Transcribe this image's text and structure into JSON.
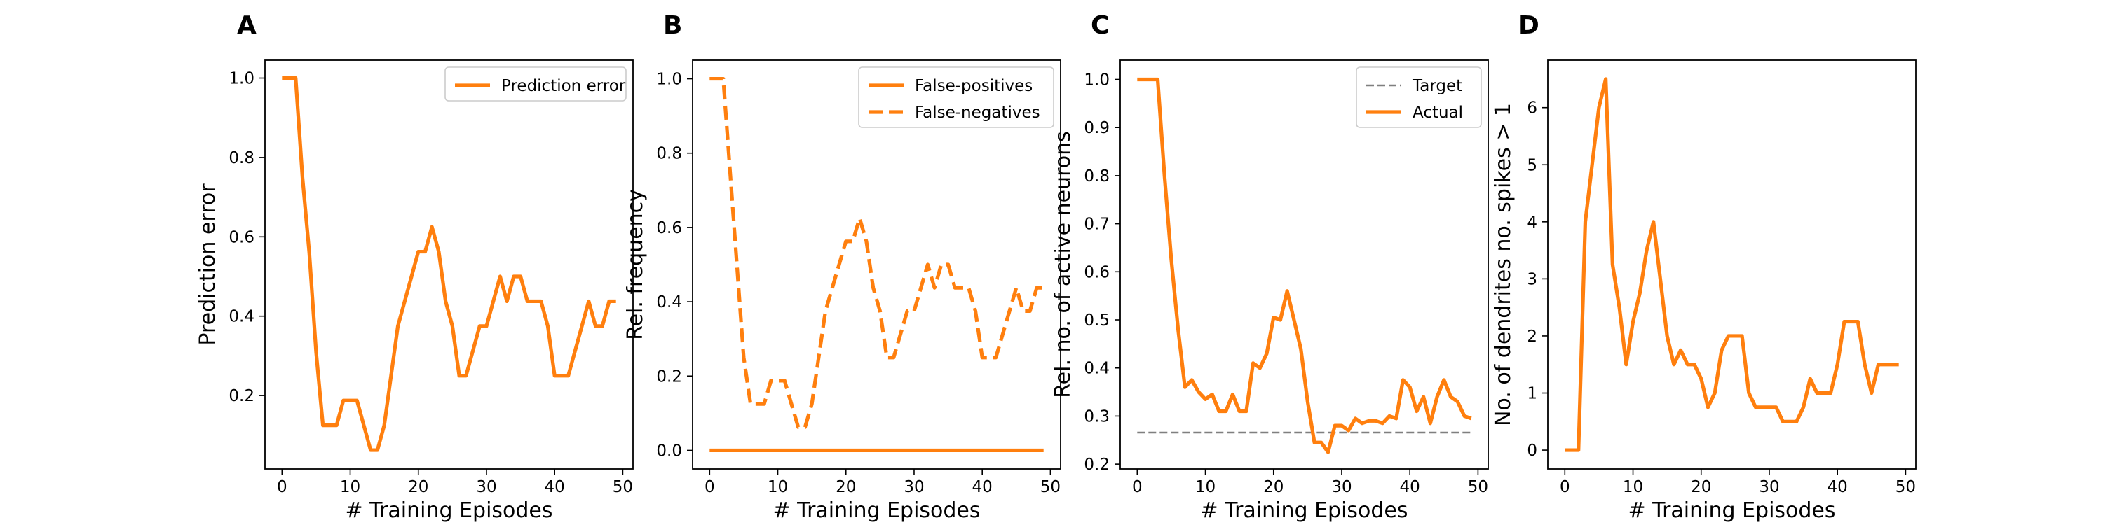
{
  "colors": {
    "series": "#ff7f0e",
    "target": "#7f7f7f",
    "axis": "#000000"
  },
  "chart_data": [
    {
      "type": "line",
      "panel_letter": "A",
      "xlabel": "# Training Episodes",
      "ylabel": "Prediction error",
      "xlim": [
        -2.5,
        51.5
      ],
      "ylim": [
        0.015,
        1.045
      ],
      "xticks": [
        0,
        10,
        20,
        30,
        40,
        50
      ],
      "xtick_labels": [
        "0",
        "10",
        "20",
        "30",
        "40",
        "50"
      ],
      "yticks": [
        0.2,
        0.4,
        0.6,
        0.8,
        1.0
      ],
      "ytick_labels": [
        "0.2",
        "0.4",
        "0.6",
        "0.8",
        "1.0"
      ],
      "legend": "upper right",
      "series": [
        {
          "name": "Prediction error",
          "style": "solid",
          "x": [
            0,
            1,
            2,
            3,
            4,
            5,
            6,
            7,
            8,
            9,
            10,
            11,
            12,
            13,
            14,
            15,
            16,
            17,
            18,
            19,
            20,
            21,
            22,
            23,
            24,
            25,
            26,
            27,
            28,
            29,
            30,
            31,
            32,
            33,
            34,
            35,
            36,
            37,
            38,
            39,
            40,
            41,
            42,
            43,
            44,
            45,
            46,
            47,
            48,
            49
          ],
          "y": [
            1.0,
            1.0,
            1.0,
            0.75,
            0.56,
            0.31,
            0.125,
            0.125,
            0.125,
            0.1875,
            0.1875,
            0.1875,
            0.125,
            0.0625,
            0.0625,
            0.125,
            0.25,
            0.375,
            0.4375,
            0.5,
            0.5625,
            0.5625,
            0.625,
            0.5625,
            0.4375,
            0.375,
            0.25,
            0.25,
            0.3125,
            0.375,
            0.375,
            0.4375,
            0.5,
            0.4375,
            0.5,
            0.5,
            0.4375,
            0.4375,
            0.4375,
            0.375,
            0.25,
            0.25,
            0.25,
            0.3125,
            0.375,
            0.4375,
            0.375,
            0.375,
            0.4375,
            0.4375
          ]
        }
      ]
    },
    {
      "type": "line",
      "panel_letter": "B",
      "xlabel": "# Training Episodes",
      "ylabel": "Rel. frequency",
      "xlim": [
        -2.5,
        51.5
      ],
      "ylim": [
        -0.05,
        1.05
      ],
      "xticks": [
        0,
        10,
        20,
        30,
        40,
        50
      ],
      "xtick_labels": [
        "0",
        "10",
        "20",
        "30",
        "40",
        "50"
      ],
      "yticks": [
        0.0,
        0.2,
        0.4,
        0.6,
        0.8,
        1.0
      ],
      "ytick_labels": [
        "0.0",
        "0.2",
        "0.4",
        "0.6",
        "0.8",
        "1.0"
      ],
      "legend": "upper right",
      "series": [
        {
          "name": "False-positives",
          "style": "solid",
          "x": [
            0,
            1,
            2,
            3,
            4,
            5,
            6,
            7,
            8,
            9,
            10,
            11,
            12,
            13,
            14,
            15,
            16,
            17,
            18,
            19,
            20,
            21,
            22,
            23,
            24,
            25,
            26,
            27,
            28,
            29,
            30,
            31,
            32,
            33,
            34,
            35,
            36,
            37,
            38,
            39,
            40,
            41,
            42,
            43,
            44,
            45,
            46,
            47,
            48,
            49
          ],
          "y": [
            0,
            0,
            0,
            0,
            0,
            0,
            0,
            0,
            0,
            0,
            0,
            0,
            0,
            0,
            0,
            0,
            0,
            0,
            0,
            0,
            0,
            0,
            0,
            0,
            0,
            0,
            0,
            0,
            0,
            0,
            0,
            0,
            0,
            0,
            0,
            0,
            0,
            0,
            0,
            0,
            0,
            0,
            0,
            0,
            0,
            0,
            0,
            0,
            0,
            0
          ]
        },
        {
          "name": "False-negatives",
          "style": "dashed",
          "x": [
            0,
            1,
            2,
            3,
            4,
            5,
            6,
            7,
            8,
            9,
            10,
            11,
            12,
            13,
            14,
            15,
            16,
            17,
            18,
            19,
            20,
            21,
            22,
            23,
            24,
            25,
            26,
            27,
            28,
            29,
            30,
            31,
            32,
            33,
            34,
            35,
            36,
            37,
            38,
            39,
            40,
            41,
            42,
            43,
            44,
            45,
            46,
            47,
            48,
            49
          ],
          "y": [
            1.0,
            1.0,
            1.0,
            0.75,
            0.5,
            0.25,
            0.125,
            0.125,
            0.125,
            0.1875,
            0.1875,
            0.1875,
            0.125,
            0.0625,
            0.0625,
            0.125,
            0.25,
            0.375,
            0.4375,
            0.5,
            0.5625,
            0.5625,
            0.625,
            0.5625,
            0.4375,
            0.375,
            0.25,
            0.25,
            0.3125,
            0.375,
            0.375,
            0.4375,
            0.5,
            0.4375,
            0.5,
            0.5,
            0.4375,
            0.4375,
            0.4375,
            0.375,
            0.25,
            0.25,
            0.25,
            0.3125,
            0.375,
            0.4375,
            0.375,
            0.375,
            0.4375,
            0.4375
          ]
        }
      ]
    },
    {
      "type": "line",
      "panel_letter": "C",
      "xlabel": "# Training Episodes",
      "ylabel": "Rel. no. of active neurons",
      "xlim": [
        -2.5,
        51.5
      ],
      "ylim": [
        0.19,
        1.04
      ],
      "xticks": [
        0,
        10,
        20,
        30,
        40,
        50
      ],
      "xtick_labels": [
        "0",
        "10",
        "20",
        "30",
        "40",
        "50"
      ],
      "yticks": [
        0.2,
        0.3,
        0.4,
        0.5,
        0.6,
        0.7,
        0.8,
        0.9,
        1.0
      ],
      "ytick_labels": [
        "0.2",
        "0.3",
        "0.4",
        "0.5",
        "0.6",
        "0.7",
        "0.8",
        "0.9",
        "1.0"
      ],
      "legend": "upper right",
      "series": [
        {
          "name": "Target",
          "style": "dashed-grey",
          "x": [
            0,
            49
          ],
          "y": [
            0.2656,
            0.2656
          ]
        },
        {
          "name": "Actual",
          "style": "solid",
          "x": [
            0,
            1,
            2,
            3,
            4,
            5,
            6,
            7,
            8,
            9,
            10,
            11,
            12,
            13,
            14,
            15,
            16,
            17,
            18,
            19,
            20,
            21,
            22,
            23,
            24,
            25,
            26,
            27,
            28,
            29,
            30,
            31,
            32,
            33,
            34,
            35,
            36,
            37,
            38,
            39,
            40,
            41,
            42,
            43,
            44,
            45,
            46,
            47,
            48,
            49
          ],
          "y": [
            1.0,
            1.0,
            1.0,
            1.0,
            0.8,
            0.625,
            0.48,
            0.36,
            0.375,
            0.35,
            0.335,
            0.345,
            0.31,
            0.31,
            0.345,
            0.31,
            0.31,
            0.41,
            0.4,
            0.43,
            0.505,
            0.5,
            0.56,
            0.5,
            0.44,
            0.33,
            0.245,
            0.245,
            0.225,
            0.28,
            0.28,
            0.27,
            0.295,
            0.285,
            0.29,
            0.29,
            0.285,
            0.3,
            0.295,
            0.375,
            0.36,
            0.31,
            0.34,
            0.285,
            0.34,
            0.375,
            0.34,
            0.33,
            0.3,
            0.295
          ]
        }
      ]
    },
    {
      "type": "line",
      "panel_letter": "D",
      "xlabel": "# Training Episodes",
      "ylabel": "No. of dendrites no. spikes > 1",
      "xlim": [
        -2.5,
        51.5
      ],
      "ylim": [
        -0.33,
        6.83
      ],
      "xticks": [
        0,
        10,
        20,
        30,
        40,
        50
      ],
      "xtick_labels": [
        "0",
        "10",
        "20",
        "30",
        "40",
        "50"
      ],
      "yticks": [
        0,
        1,
        2,
        3,
        4,
        5,
        6
      ],
      "ytick_labels": [
        "0",
        "1",
        "2",
        "3",
        "4",
        "5",
        "6"
      ],
      "legend": "none",
      "series": [
        {
          "style": "solid",
          "x": [
            0,
            1,
            2,
            3,
            4,
            5,
            6,
            7,
            8,
            9,
            10,
            11,
            12,
            13,
            14,
            15,
            16,
            17,
            18,
            19,
            20,
            21,
            22,
            23,
            24,
            25,
            26,
            27,
            28,
            29,
            30,
            31,
            32,
            33,
            34,
            35,
            36,
            37,
            38,
            39,
            40,
            41,
            42,
            43,
            44,
            45,
            46,
            47,
            48,
            49
          ],
          "y": [
            0,
            0,
            0,
            4.0,
            5.0,
            6.0,
            6.5,
            3.25,
            2.5,
            1.5,
            2.25,
            2.75,
            3.5,
            4.0,
            3.0,
            2.0,
            1.5,
            1.75,
            1.5,
            1.5,
            1.25,
            0.75,
            1.0,
            1.75,
            2.0,
            2.0,
            2.0,
            1.0,
            0.75,
            0.75,
            0.75,
            0.75,
            0.5,
            0.5,
            0.5,
            0.75,
            1.25,
            1.0,
            1.0,
            1.0,
            1.5,
            2.25,
            2.25,
            2.25,
            1.5,
            1.0,
            1.5,
            1.5,
            1.5,
            1.5
          ]
        }
      ]
    }
  ]
}
